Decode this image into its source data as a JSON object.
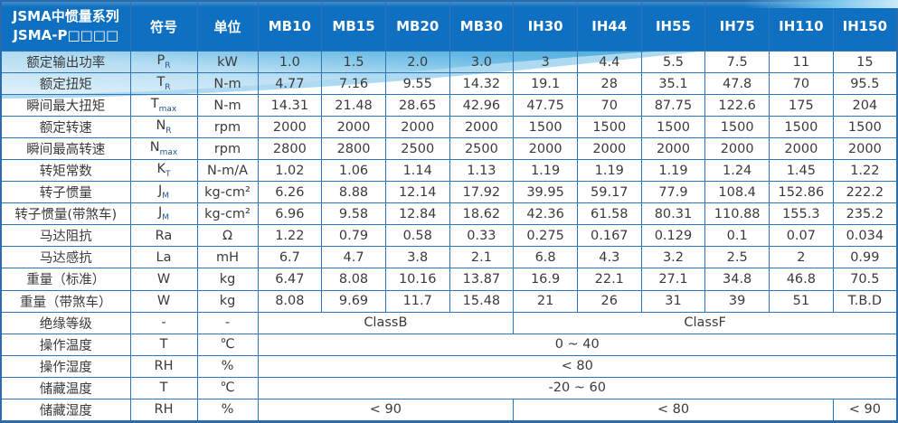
{
  "colors": {
    "header_bg": "#0f70c1",
    "grid_border": "#2e75b6",
    "wave_light": "#ddeff9",
    "wave_mid": "#a8d7f0",
    "wave_deep": "#2d9fd8",
    "body_text": "#3a3a3a",
    "header_text": "#ffffff"
  },
  "header": {
    "title_line1": "JSMA中惯量系列",
    "title_line2": "JSMA-P□□□□",
    "symbol_col": "符号",
    "unit_col": "单位",
    "models": [
      "MB10",
      "MB15",
      "MB20",
      "MB30",
      "IH30",
      "IH44",
      "IH55",
      "IH75",
      "IH110",
      "IH150"
    ]
  },
  "rows": [
    {
      "label": "额定输出功率",
      "symbol": "P",
      "sub": "R",
      "unit": "kW",
      "values": [
        "1.0",
        "1.5",
        "2.0",
        "3.0",
        "3",
        "4.4",
        "5.5",
        "7.5",
        "11",
        "15"
      ]
    },
    {
      "label": "额定扭矩",
      "symbol": "T",
      "sub": "R",
      "unit": "N-m",
      "values": [
        "4.77",
        "7.16",
        "9.55",
        "14.32",
        "19.1",
        "28",
        "35.1",
        "47.8",
        "70",
        "95.5"
      ]
    },
    {
      "label": "瞬间最大扭矩",
      "symbol": "T",
      "sub": "max",
      "unit": "N-m",
      "values": [
        "14.31",
        "21.48",
        "28.65",
        "42.96",
        "47.75",
        "70",
        "87.75",
        "122.6",
        "175",
        "204"
      ]
    },
    {
      "label": "额定转速",
      "symbol": "N",
      "sub": "R",
      "unit": "rpm",
      "values": [
        "2000",
        "2000",
        "2000",
        "2000",
        "1500",
        "1500",
        "1500",
        "1500",
        "1500",
        "1500"
      ]
    },
    {
      "label": "瞬间最高转速",
      "symbol": "N",
      "sub": "max",
      "unit": "rpm",
      "values": [
        "2800",
        "2800",
        "2500",
        "2500",
        "2000",
        "2000",
        "2000",
        "2000",
        "2000",
        "2000"
      ]
    },
    {
      "label": "转矩常数",
      "symbol": "K",
      "sub": "T",
      "unit": "N-m/A",
      "values": [
        "1.02",
        "1.06",
        "1.14",
        "1.13",
        "1.19",
        "1.19",
        "1.19",
        "1.24",
        "1.45",
        "1.22"
      ]
    },
    {
      "label": "转子惯量",
      "symbol": "J",
      "sub": "M",
      "unit": "kg-cm²",
      "values": [
        "6.26",
        "8.88",
        "12.14",
        "17.92",
        "39.95",
        "59.17",
        "77.9",
        "108.4",
        "152.86",
        "222.2"
      ]
    },
    {
      "label": "转子惯量(带煞车)",
      "symbol": "J",
      "sub": "M",
      "unit": "kg-cm²",
      "values": [
        "6.96",
        "9.58",
        "12.84",
        "18.62",
        "42.36",
        "61.58",
        "80.31",
        "110.88",
        "155.3",
        "235.2"
      ]
    },
    {
      "label": "马达阻抗",
      "symbol": "Ra",
      "sub": "",
      "unit": "Ω",
      "values": [
        "1.22",
        "0.79",
        "0.58",
        "0.33",
        "0.275",
        "0.167",
        "0.129",
        "0.1",
        "0.07",
        "0.034"
      ]
    },
    {
      "label": "马达感抗",
      "symbol": "La",
      "sub": "",
      "unit": "mH",
      "values": [
        "6.7",
        "4.7",
        "3.8",
        "2.1",
        "6.8",
        "4.3",
        "3.2",
        "2.5",
        "2",
        "0.99"
      ]
    },
    {
      "label": "重量（标准）",
      "symbol": "W",
      "sub": "",
      "unit": "kg",
      "values": [
        "6.47",
        "8.08",
        "10.16",
        "13.87",
        "16.9",
        "22.1",
        "27.1",
        "34.8",
        "46.8",
        "70.5"
      ]
    },
    {
      "label": "重量（带煞车）",
      "symbol": "W",
      "sub": "",
      "unit": "kg",
      "values": [
        "8.08",
        "9.69",
        "11.7",
        "15.48",
        "21",
        "26",
        "31",
        "39",
        "51",
        "T.B.D"
      ]
    },
    {
      "label": "绝缘等级",
      "symbol": "-",
      "sub": "",
      "unit": "-",
      "spans": [
        {
          "text": "ClassB",
          "cols": 4
        },
        {
          "text": "ClassF",
          "cols": 6
        }
      ]
    },
    {
      "label": "操作温度",
      "symbol": "T",
      "sub": "",
      "unit": "℃",
      "spans": [
        {
          "text": "0 ~ 40",
          "cols": 10
        }
      ]
    },
    {
      "label": "操作湿度",
      "symbol": "RH",
      "sub": "",
      "unit": "%",
      "spans": [
        {
          "text": "< 80",
          "cols": 10
        }
      ]
    },
    {
      "label": "储藏温度",
      "symbol": "T",
      "sub": "",
      "unit": "℃",
      "spans": [
        {
          "text": "-20 ~ 60",
          "cols": 10
        }
      ]
    },
    {
      "label": "储藏湿度",
      "symbol": "RH",
      "sub": "",
      "unit": "%",
      "spans": [
        {
          "text": "< 90",
          "cols": 4
        },
        {
          "text": "< 80",
          "cols": 5
        },
        {
          "text": "< 90",
          "cols": 1
        }
      ]
    }
  ]
}
